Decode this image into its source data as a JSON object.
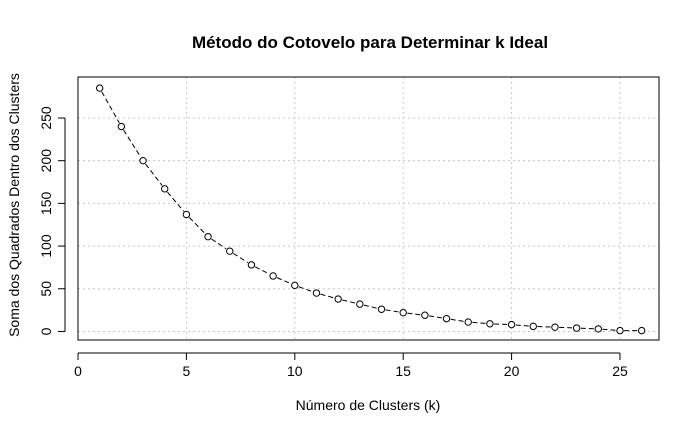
{
  "chart_data": {
    "type": "line",
    "title": "Método do Cotovelo para Determinar k Ideal",
    "xlabel": "Número de Clusters (k)",
    "ylabel": "Soma dos Quadrados Dentro dos Clusters",
    "xlim": [
      0,
      26.8
    ],
    "ylim": [
      -10,
      298
    ],
    "x_ticks": [
      0,
      5,
      10,
      15,
      20,
      25
    ],
    "y_ticks": [
      0,
      50,
      100,
      150,
      200,
      250
    ],
    "grid": true,
    "line_style": "dashed",
    "marker": "open-circle",
    "series": [
      {
        "x": [
          1,
          2,
          3,
          4,
          5,
          6,
          7,
          8,
          9,
          10,
          11,
          12,
          13,
          14,
          15,
          16,
          17,
          18,
          19,
          20,
          21,
          22,
          23,
          24,
          25,
          26
        ],
        "values": [
          285,
          240,
          200,
          167,
          137,
          111,
          94,
          78,
          65,
          54,
          45,
          38,
          32,
          26,
          22,
          19,
          15,
          11,
          9,
          8,
          6,
          5,
          4,
          3,
          1,
          1
        ]
      }
    ]
  },
  "colors": {
    "line": "#000000",
    "grid": "#c8c8c8",
    "background": "#ffffff"
  }
}
